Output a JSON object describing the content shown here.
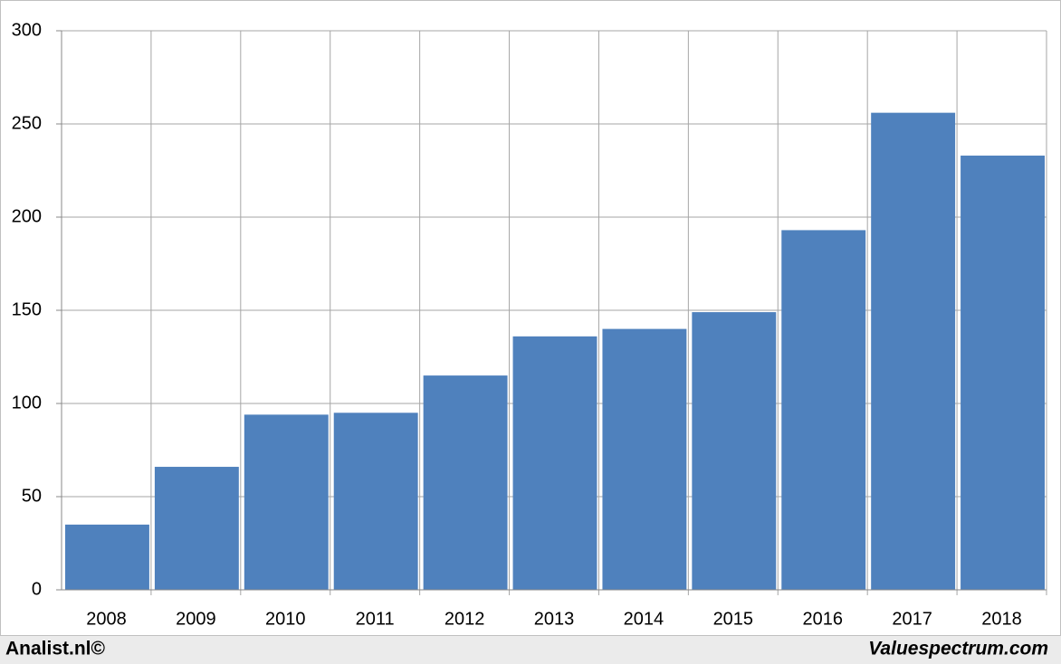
{
  "chart_data": {
    "type": "bar",
    "categories": [
      "2008",
      "2009",
      "2010",
      "2011",
      "2012",
      "2013",
      "2014",
      "2015",
      "2016",
      "2017",
      "2018"
    ],
    "values": [
      35,
      66,
      94,
      95,
      115,
      136,
      140,
      149,
      193,
      256,
      233
    ],
    "color": "#4f81bd",
    "ylim": [
      0,
      300
    ],
    "yticks": [
      0,
      50,
      100,
      150,
      200,
      250,
      300
    ],
    "grid": true,
    "footer_left": "Analist.nl©",
    "footer_right": "Valuespectrum.com"
  }
}
